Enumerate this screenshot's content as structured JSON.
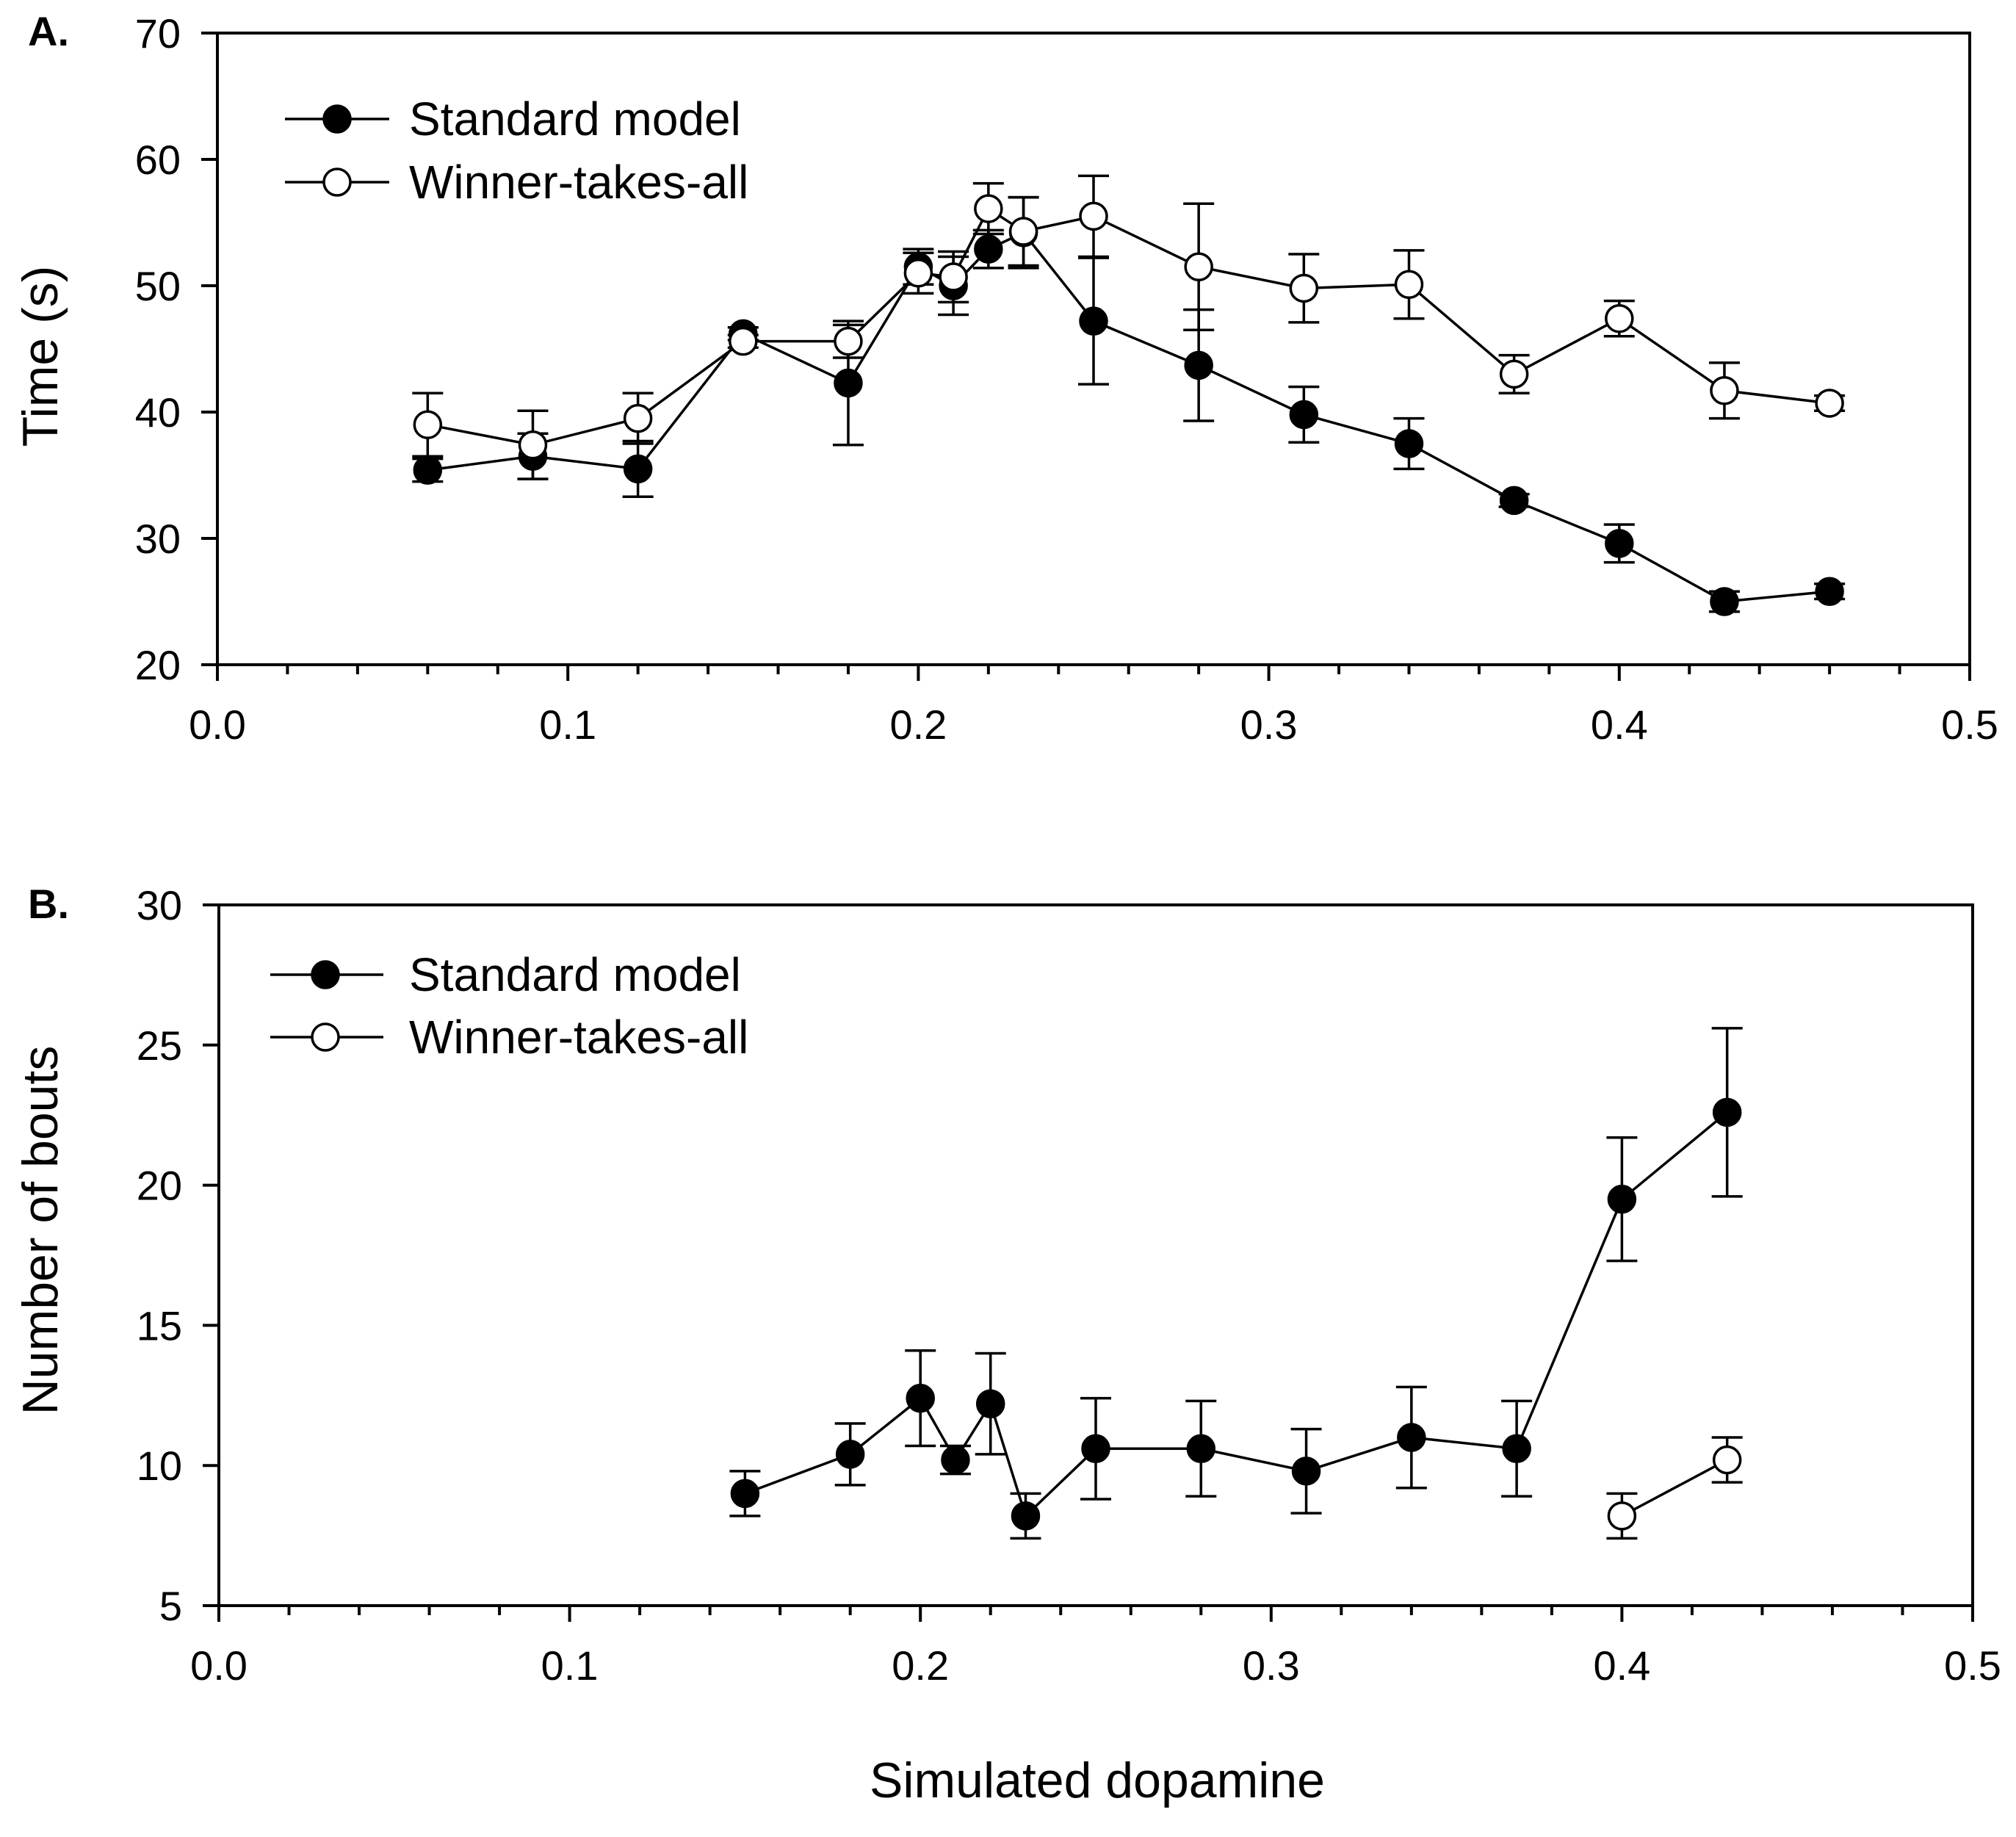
{
  "xlabel": "Simulated dopamine",
  "chart_data": [
    {
      "type": "line",
      "panel_label": "A.",
      "title": "",
      "xlabel": "Simulated dopamine",
      "ylabel": "Time (s)",
      "xlim": [
        0.0,
        0.5
      ],
      "ylim": [
        20,
        70
      ],
      "x_ticks": [
        0.0,
        0.1,
        0.2,
        0.3,
        0.4,
        0.5
      ],
      "x_tick_labels": [
        "0.0",
        "0.1",
        "0.2",
        "0.3",
        "0.4",
        "0.5"
      ],
      "y_ticks": [
        20,
        30,
        40,
        50,
        60,
        70
      ],
      "y_tick_labels": [
        "20",
        "30",
        "40",
        "50",
        "60",
        "70"
      ],
      "grid": false,
      "legend_position": "top-left",
      "series": [
        {
          "name": "Standard model",
          "marker": "filled-circle",
          "x": [
            0.06,
            0.09,
            0.12,
            0.15,
            0.18,
            0.2,
            0.21,
            0.22,
            0.23,
            0.25,
            0.28,
            0.31,
            0.34,
            0.37,
            0.4,
            0.43,
            0.46
          ],
          "y": [
            35.4,
            36.5,
            35.5,
            46.2,
            42.3,
            51.5,
            50.0,
            52.9,
            54.2,
            47.2,
            43.7,
            39.8,
            37.5,
            33.0,
            29.6,
            25.0,
            25.8
          ],
          "err": [
            0.9,
            1.8,
            2.2,
            0.5,
            4.9,
            1.4,
            2.3,
            1.5,
            2.8,
            5.0,
            4.4,
            2.2,
            2.0,
            0.5,
            1.5,
            0.8,
            0.6
          ]
        },
        {
          "name": "Winner-takes-all",
          "marker": "open-circle",
          "x": [
            0.06,
            0.09,
            0.12,
            0.15,
            0.18,
            0.2,
            0.21,
            0.22,
            0.23,
            0.25,
            0.28,
            0.31,
            0.34,
            0.37,
            0.4,
            0.43,
            0.46
          ],
          "y": [
            39.0,
            37.4,
            39.5,
            45.6,
            45.6,
            51.0,
            50.7,
            56.1,
            54.3,
            55.5,
            51.5,
            49.8,
            50.1,
            43.0,
            47.4,
            41.7,
            40.7
          ],
          "err": [
            2.5,
            2.7,
            2.0,
            0.5,
            1.3,
            1.6,
            2.0,
            2.0,
            2.7,
            3.2,
            5.0,
            2.7,
            2.7,
            1.5,
            1.4,
            2.2,
            0.6
          ]
        }
      ]
    },
    {
      "type": "line",
      "panel_label": "B.",
      "title": "",
      "xlabel": "Simulated dopamine",
      "ylabel": "Number of bouts",
      "xlim": [
        0.0,
        0.5
      ],
      "ylim": [
        5,
        30
      ],
      "x_ticks": [
        0.0,
        0.1,
        0.2,
        0.3,
        0.4,
        0.5
      ],
      "x_tick_labels": [
        "0.0",
        "0.1",
        "0.2",
        "0.3",
        "0.4",
        "0.5"
      ],
      "y_ticks": [
        5,
        10,
        15,
        20,
        25,
        30
      ],
      "y_tick_labels": [
        "5",
        "10",
        "15",
        "20",
        "25",
        "30"
      ],
      "grid": false,
      "legend_position": "top-left",
      "series": [
        {
          "name": "Standard model",
          "marker": "filled-circle",
          "x": [
            0.15,
            0.18,
            0.2,
            0.21,
            0.22,
            0.23,
            0.25,
            0.28,
            0.31,
            0.34,
            0.37,
            0.4,
            0.43
          ],
          "y": [
            9.0,
            10.4,
            12.4,
            10.2,
            12.2,
            8.2,
            10.6,
            10.6,
            9.8,
            11.0,
            10.6,
            19.5,
            22.6
          ],
          "err": [
            0.8,
            1.1,
            1.7,
            0.5,
            1.8,
            0.8,
            1.8,
            1.7,
            1.5,
            1.8,
            1.7,
            2.2,
            3.0
          ]
        },
        {
          "name": "Winner-takes-all",
          "marker": "open-circle",
          "x": [
            0.4,
            0.43
          ],
          "y": [
            8.2,
            10.2
          ],
          "err": [
            0.8,
            0.8
          ]
        }
      ]
    }
  ]
}
